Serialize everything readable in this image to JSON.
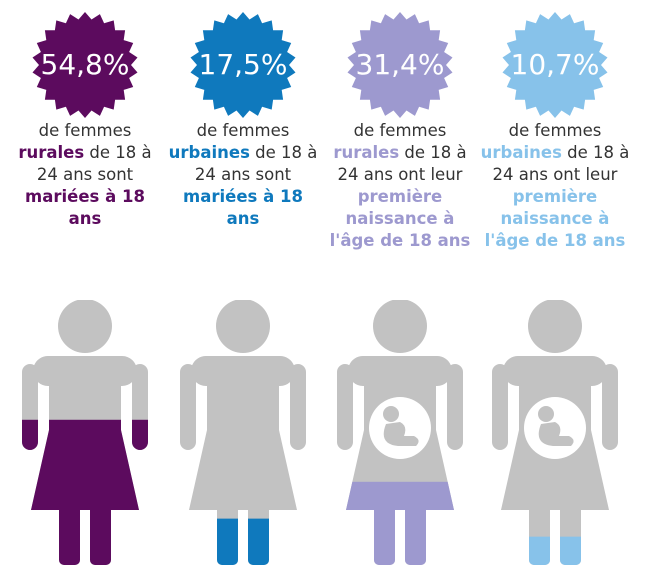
{
  "chart_data": {
    "type": "pictogram",
    "values": [
      54.8,
      17.5,
      31.4,
      10.7
    ],
    "value_labels": [
      "54,8%",
      "17,5%",
      "31,4%",
      "10,7%"
    ],
    "colors": [
      "#5c0b5e",
      "#0f79bd",
      "#9d99cf",
      "#87c2ea"
    ],
    "ylim": [
      0,
      100
    ],
    "pregnant": [
      false,
      false,
      true,
      true
    ],
    "captions": [
      [
        "de femmes ",
        "rurales",
        " de 18 à 24 ans sont ",
        "mariées à 18 ans"
      ],
      [
        "de femmes ",
        "urbaines",
        " de 18 à 24 ans sont ",
        "mariées à 18 ans"
      ],
      [
        "de femmes ",
        "rurales",
        " de 18 à 24 ans ont leur ",
        "première naissance à l'âge de 18 ans"
      ],
      [
        "de femmes ",
        "urbaines",
        " de 18 à 24 ans ont leur ",
        "première naissance à l'âge de 18 ans"
      ]
    ]
  }
}
